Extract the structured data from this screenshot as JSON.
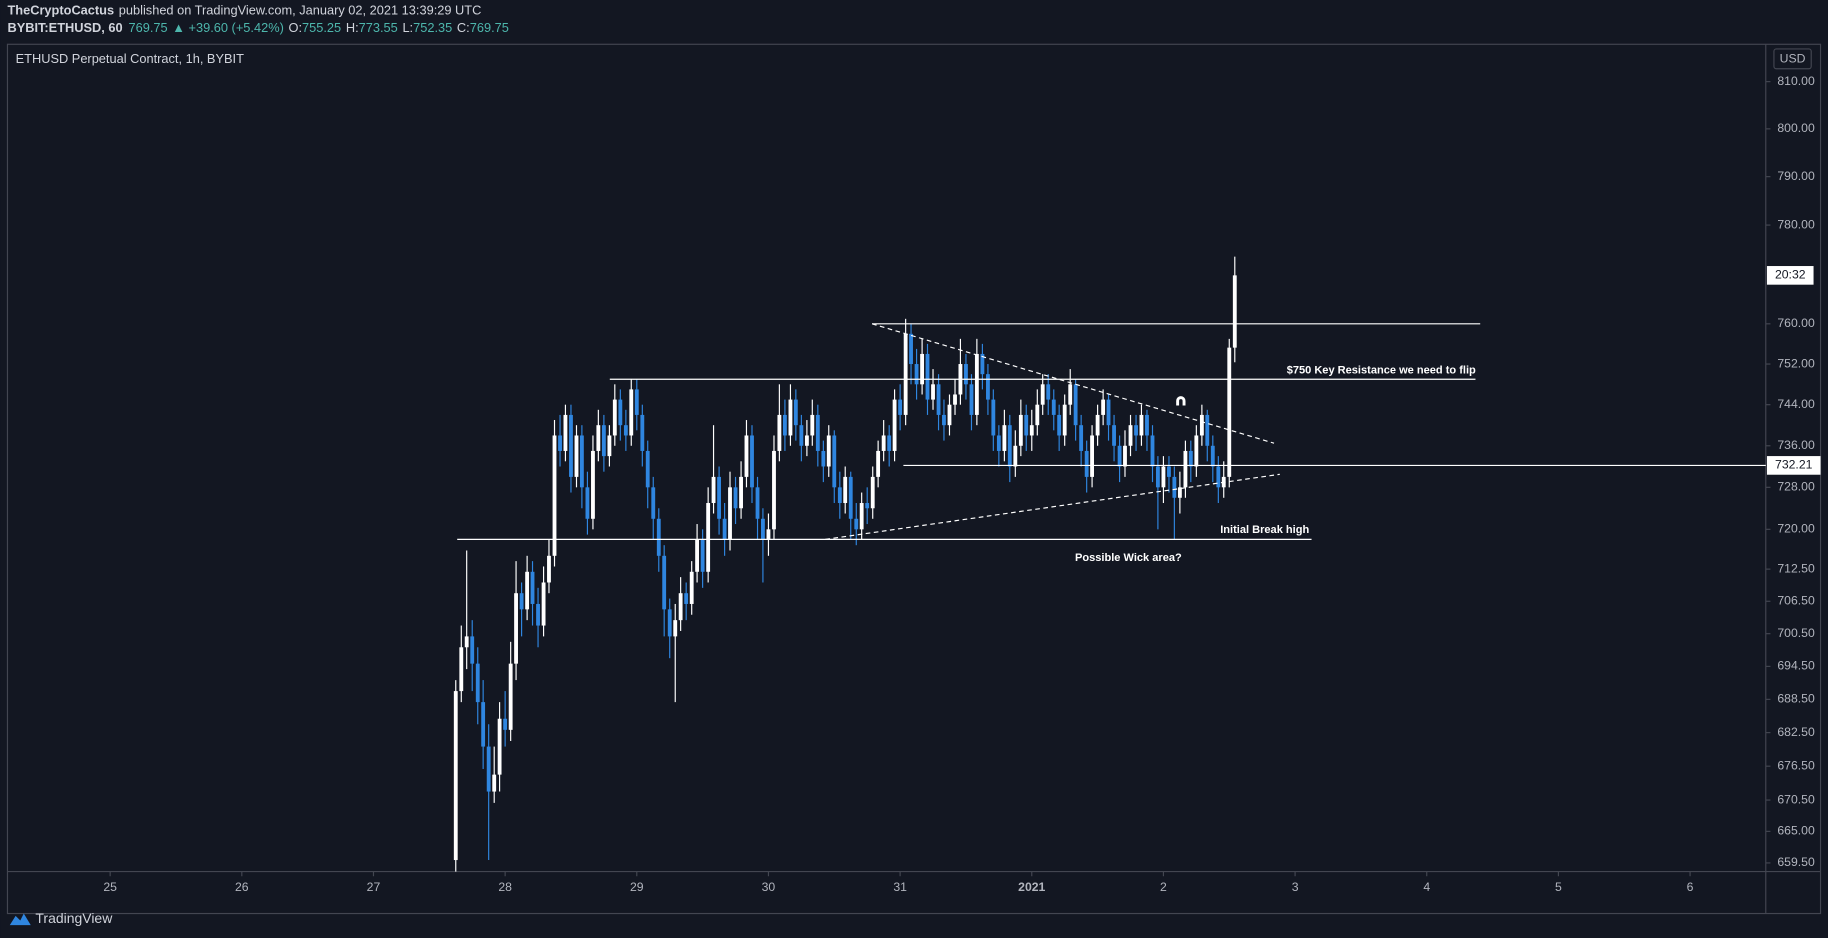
{
  "header": {
    "author": "TheCryptoCactus",
    "published": "published on TradingView.com, January 02, 2021 13:39:29 UTC",
    "symbol": "BYBIT:ETHUSD, 60",
    "change": "▲ +39.60 (+5.42%)",
    "o_label": "O:",
    "h_label": "H:",
    "l_label": "L:",
    "c_label": "C:"
  },
  "chart_data": {
    "type": "candlestick",
    "title": "ETHUSD Perpetual Contract, 1h, BYBIT",
    "currency": "USD",
    "up_color": "#ffffff",
    "down_color": "#2f86e0",
    "log_scale": true,
    "grid": false,
    "x": [
      27.625,
      27.667,
      27.708,
      27.75,
      27.792,
      27.833,
      27.875,
      27.917,
      27.958,
      28,
      28.042,
      28.083,
      28.125,
      28.167,
      28.208,
      28.25,
      28.292,
      28.333,
      28.375,
      28.417,
      28.458,
      28.5,
      28.542,
      28.583,
      28.625,
      28.667,
      28.708,
      28.75,
      28.792,
      28.833,
      28.875,
      28.917,
      28.958,
      29,
      29.042,
      29.083,
      29.125,
      29.167,
      29.208,
      29.25,
      29.292,
      29.333,
      29.375,
      29.417,
      29.458,
      29.5,
      29.542,
      29.583,
      29.625,
      29.667,
      29.708,
      29.75,
      29.792,
      29.833,
      29.875,
      29.917,
      29.958,
      30,
      30.042,
      30.083,
      30.125,
      30.167,
      30.208,
      30.25,
      30.292,
      30.333,
      30.375,
      30.417,
      30.458,
      30.5,
      30.542,
      30.583,
      30.625,
      30.667,
      30.708,
      30.75,
      30.792,
      30.833,
      30.875,
      30.917,
      30.958,
      31,
      31.042,
      31.083,
      31.125,
      31.167,
      31.208,
      31.25,
      31.292,
      31.333,
      31.375,
      31.417,
      31.458,
      31.5,
      31.542,
      31.583,
      31.625,
      31.667,
      31.708,
      31.75,
      31.792,
      31.833,
      31.875,
      31.917,
      31.958,
      32,
      32.042,
      32.083,
      32.125,
      32.167,
      32.208,
      32.25,
      32.292,
      32.333,
      32.375,
      32.417,
      32.458,
      32.5,
      32.542,
      32.583,
      32.625,
      32.667,
      32.708,
      32.75,
      32.792,
      32.833,
      32.875,
      32.917,
      32.958,
      33,
      33.042,
      33.083,
      33.125,
      33.167,
      33.208,
      33.25,
      33.292,
      33.333,
      33.375,
      33.417,
      33.458,
      33.5,
      33.542
    ],
    "open": [
      660,
      690,
      698,
      700,
      695,
      688,
      680,
      672,
      675,
      685,
      683,
      695,
      708,
      705,
      712,
      706,
      702,
      710,
      715,
      738,
      735,
      742,
      730,
      738,
      728,
      722,
      735,
      740,
      734,
      738,
      745,
      740,
      738,
      747,
      742,
      735,
      728,
      722,
      715,
      705,
      700,
      703,
      708,
      706,
      712,
      718,
      712,
      725,
      730,
      722,
      718,
      728,
      724,
      730,
      738,
      728,
      722,
      718,
      720,
      735,
      742,
      738,
      745,
      740,
      736,
      738,
      742,
      735,
      732,
      738,
      728,
      725,
      730,
      722,
      720,
      725,
      724,
      730,
      735,
      738,
      735,
      745,
      742,
      758,
      752,
      748,
      754,
      745,
      748,
      742,
      740,
      744,
      746,
      752,
      748,
      742,
      754,
      750,
      745,
      738,
      735,
      740,
      732,
      736,
      742,
      738,
      740,
      744,
      748,
      745,
      742,
      738,
      744,
      748,
      740,
      735,
      730,
      738,
      742,
      745,
      740,
      736,
      732,
      736,
      740,
      738,
      742,
      738,
      732,
      728,
      732,
      730,
      726,
      728,
      735,
      732,
      738,
      742,
      736,
      732,
      728,
      730,
      755.25
    ],
    "high": [
      692,
      702,
      716,
      703,
      698,
      692,
      684,
      680,
      688,
      690,
      699,
      714,
      710,
      715,
      714,
      709,
      713,
      718,
      741,
      742,
      744,
      744,
      740,
      740,
      731,
      738,
      743,
      742,
      740,
      748,
      747,
      743,
      749,
      749,
      744,
      737,
      730,
      724,
      717,
      707,
      706,
      711,
      710,
      714,
      721,
      720,
      728,
      740,
      732,
      725,
      731,
      730,
      733,
      741,
      740,
      730,
      724,
      723,
      738,
      748,
      745,
      748,
      747,
      742,
      741,
      745,
      744,
      737,
      740,
      739,
      731,
      732,
      731,
      725,
      727,
      728,
      732,
      737,
      741,
      740,
      747,
      748,
      761,
      760,
      755,
      757,
      756,
      751,
      750,
      745,
      746,
      749,
      757,
      754,
      750,
      757,
      756,
      752,
      747,
      740,
      743,
      742,
      739,
      745,
      744,
      743,
      747,
      750,
      750,
      747,
      744,
      746,
      751,
      749,
      742,
      737,
      740,
      744,
      747,
      746,
      742,
      738,
      739,
      742,
      742,
      744,
      743,
      740,
      734,
      734,
      734,
      732,
      731,
      737,
      737,
      740,
      744,
      743,
      738,
      734,
      733,
      757,
      773.55
    ],
    "low": [
      656,
      688,
      694,
      690,
      684,
      676,
      660,
      670,
      672,
      680,
      681,
      692,
      700,
      703,
      702,
      698,
      700,
      708,
      713,
      732,
      733,
      727,
      728,
      724,
      719,
      720,
      733,
      731,
      732,
      736,
      737,
      735,
      736,
      739,
      732,
      724,
      718,
      712,
      700,
      696,
      688,
      701,
      703,
      704,
      710,
      709,
      710,
      723,
      719,
      715,
      716,
      721,
      722,
      728,
      725,
      718,
      710,
      715,
      718,
      733,
      735,
      736,
      737,
      733,
      734,
      736,
      732,
      729,
      730,
      725,
      722,
      723,
      718,
      717,
      718,
      721,
      722,
      728,
      733,
      732,
      733,
      739,
      740,
      748,
      745,
      746,
      742,
      743,
      739,
      737,
      738,
      742,
      744,
      745,
      739,
      740,
      747,
      742,
      735,
      732,
      733,
      729,
      730,
      734,
      735,
      735,
      738,
      742,
      742,
      739,
      735,
      736,
      742,
      737,
      732,
      727,
      728,
      736,
      740,
      737,
      733,
      729,
      730,
      734,
      735,
      736,
      735,
      729,
      720,
      725,
      727,
      718,
      723,
      726,
      729,
      730,
      736,
      733,
      729,
      725,
      726,
      728,
      752.35
    ],
    "close": [
      690,
      698,
      700,
      695,
      688,
      680,
      672,
      675,
      685,
      683,
      695,
      708,
      705,
      712,
      706,
      702,
      710,
      715,
      738,
      735,
      742,
      730,
      738,
      728,
      722,
      735,
      740,
      734,
      738,
      745,
      740,
      738,
      747,
      742,
      735,
      728,
      722,
      715,
      705,
      700,
      703,
      708,
      706,
      712,
      718,
      712,
      725,
      730,
      722,
      718,
      728,
      724,
      730,
      738,
      728,
      722,
      718,
      720,
      735,
      742,
      738,
      745,
      740,
      736,
      738,
      742,
      735,
      732,
      738,
      728,
      725,
      730,
      722,
      720,
      725,
      724,
      730,
      735,
      738,
      735,
      745,
      742,
      758,
      752,
      748,
      754,
      745,
      748,
      742,
      740,
      744,
      746,
      752,
      748,
      742,
      754,
      750,
      745,
      738,
      735,
      740,
      732,
      736,
      742,
      738,
      740,
      744,
      748,
      745,
      742,
      738,
      744,
      748,
      740,
      735,
      730,
      738,
      742,
      745,
      740,
      736,
      732,
      736,
      740,
      738,
      742,
      738,
      732,
      728,
      732,
      730,
      726,
      728,
      735,
      732,
      738,
      742,
      736,
      732,
      728,
      730,
      755.25,
      769.75
    ],
    "xlim": [
      24.22,
      37.575
    ],
    "xticks": [
      25,
      26,
      27,
      28,
      29,
      30,
      31,
      {
        "value": 32,
        "label": "2021"
      },
      {
        "value": 33,
        "label": "2"
      },
      {
        "value": 34,
        "label": "3"
      },
      {
        "value": 35,
        "label": "4"
      },
      {
        "value": 36,
        "label": "5"
      },
      {
        "value": 37,
        "label": "6"
      }
    ],
    "ylim": [
      658,
      818
    ],
    "yticks": [
      {
        "value": 810,
        "label": "810.00"
      },
      {
        "value": 800,
        "label": "800.00"
      },
      {
        "value": 790,
        "label": "790.00"
      },
      {
        "value": 780,
        "label": "780.00"
      },
      {
        "value": 760,
        "label": "760.00"
      },
      {
        "value": 752,
        "label": "752.00"
      },
      {
        "value": 744,
        "label": "744.00"
      },
      {
        "value": 736,
        "label": "736.00"
      },
      {
        "value": 728,
        "label": "728.00"
      },
      {
        "value": 720,
        "label": "720.00"
      },
      {
        "value": 712.5,
        "label": "712.50"
      },
      {
        "value": 706.5,
        "label": "706.50"
      },
      {
        "value": 700.5,
        "label": "700.50"
      },
      {
        "value": 694.5,
        "label": "694.50"
      },
      {
        "value": 688.5,
        "label": "688.50"
      },
      {
        "value": 682.5,
        "label": "682.50"
      },
      {
        "value": 676.5,
        "label": "676.50"
      },
      {
        "value": 670.5,
        "label": "670.50"
      },
      {
        "value": 665,
        "label": "665.00"
      },
      {
        "value": 659.5,
        "label": "659.50"
      }
    ],
    "drawings": [
      {
        "style": "solid",
        "x": [
          30.787,
          35.406
        ],
        "y": [
          760,
          760
        ]
      },
      {
        "style": "solid",
        "x": [
          28.795,
          35.37
        ],
        "y": [
          749,
          749
        ]
      },
      {
        "style": "solid",
        "x": [
          27.636,
          34.125
        ],
        "y": [
          718.1,
          718.1
        ]
      },
      {
        "style": "dashed",
        "x": [
          30.787,
          33.84
        ],
        "y": [
          760,
          736.5
        ]
      },
      {
        "style": "dashed",
        "x": [
          30.432,
          33.884
        ],
        "y": [
          718.1,
          730.5
        ]
      },
      {
        "style": "ray",
        "x": [
          31.025
        ],
        "y": [
          732.21
        ]
      }
    ],
    "annotations": [
      "$750 Key Resistance we need to flip",
      "Initial Break high",
      "Possible Wick area?"
    ],
    "countdown": "20:32"
  },
  "footer": {
    "brand": "TradingView"
  }
}
